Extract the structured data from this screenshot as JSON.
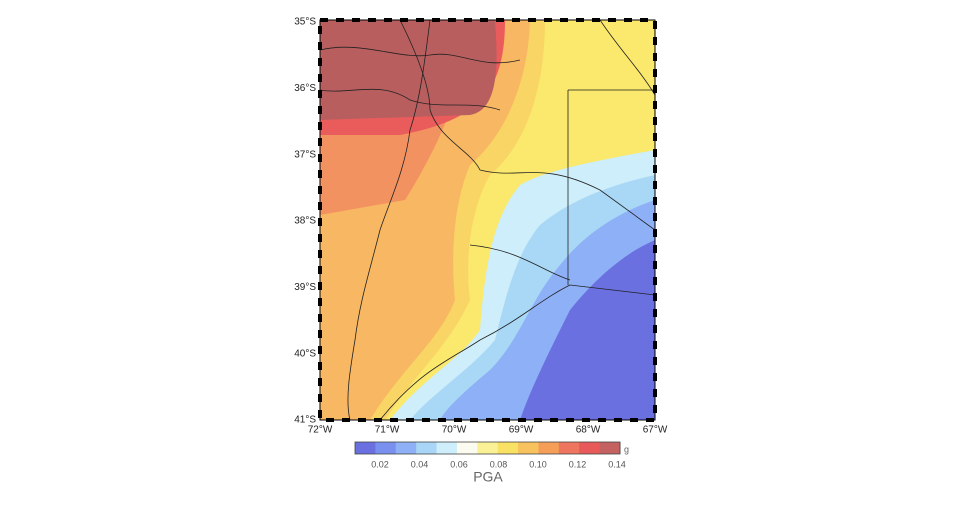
{
  "map": {
    "lat_labels": [
      "35°S",
      "36°S",
      "37°S",
      "38°S",
      "39°S",
      "40°S",
      "41°S"
    ],
    "lon_labels": [
      "72°W",
      "71°W",
      "70°W",
      "69°W",
      "68°W",
      "67°W"
    ]
  },
  "colorbar": {
    "ticks": [
      "0.02",
      "0.04",
      "0.06",
      "0.08",
      "0.10",
      "0.12",
      "0.14"
    ],
    "unit": "g",
    "title": "PGA",
    "colors": [
      "#6a70e0",
      "#7a90ee",
      "#8eb0f6",
      "#a9d6f6",
      "#cdeefa",
      "#fbfbf0",
      "#faf196",
      "#f9e163",
      "#f8c35f",
      "#f49e58",
      "#ee7660",
      "#e85a5a",
      "#c46262"
    ]
  }
}
